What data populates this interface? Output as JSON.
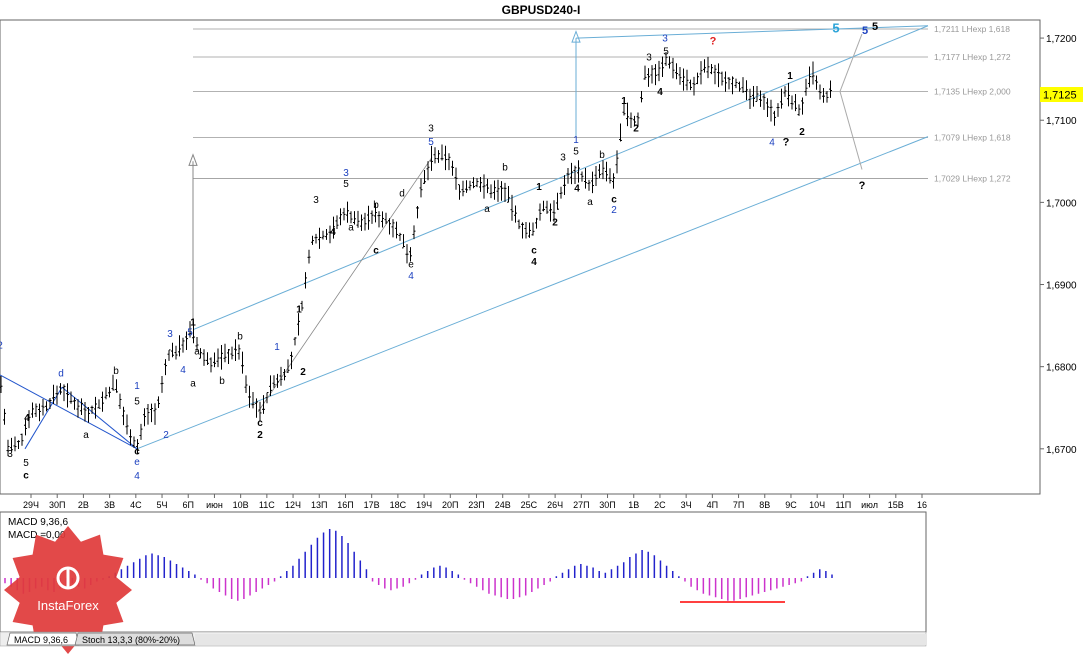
{
  "chart_data": {
    "type": "ohlc-bar",
    "title": "GBPUSD240-I",
    "ylim": [
      1.6645,
      1.7222
    ],
    "y_ticks": [
      "1,7200",
      "1,7100",
      "1,7000",
      "1,6900",
      "1,6800",
      "1,6700"
    ],
    "y_tick_values": [
      1.72,
      1.71,
      1.7,
      1.69,
      1.68,
      1.67
    ],
    "x_ticks": [
      "29Ч",
      "30П",
      "2В",
      "3В",
      "4С",
      "5Ч",
      "6П",
      "июн",
      "10В",
      "11С",
      "12Ч",
      "13П",
      "16П",
      "17В",
      "18С",
      "19Ч",
      "20П",
      "23П",
      "24В",
      "25С",
      "26Ч",
      "27П",
      "30П",
      "1В",
      "2С",
      "3Ч",
      "4П",
      "7П",
      "8В",
      "9С",
      "10Ч",
      "11П",
      "июл",
      "15В",
      "16"
    ],
    "grid": false,
    "current_price": "1,7125",
    "current_price_value": 1.7125,
    "fib_levels": [
      {
        "label": "1,7211 LHexp 1,618",
        "value": 1.7211
      },
      {
        "label": "1,7177 LHexp 1,272",
        "value": 1.7177
      },
      {
        "label": "1,7135 LHexp 2,000",
        "value": 1.7135
      },
      {
        "label": "1,7079 LHexp 1,618",
        "value": 1.7079
      },
      {
        "label": "1,7029 LHexp 1,272",
        "value": 1.7029
      }
    ],
    "price_path": [
      [
        0,
        1.679
      ],
      [
        8,
        1.67
      ],
      [
        20,
        1.6705
      ],
      [
        30,
        1.6745
      ],
      [
        45,
        1.675
      ],
      [
        62,
        1.6775
      ],
      [
        70,
        1.676
      ],
      [
        88,
        1.6745
      ],
      [
        100,
        1.6755
      ],
      [
        115,
        1.678
      ],
      [
        125,
        1.6735
      ],
      [
        137,
        1.67
      ],
      [
        146,
        1.6745
      ],
      [
        157,
        1.6745
      ],
      [
        168,
        1.6815
      ],
      [
        178,
        1.682
      ],
      [
        192,
        1.6845
      ],
      [
        200,
        1.6815
      ],
      [
        212,
        1.6805
      ],
      [
        226,
        1.6815
      ],
      [
        240,
        1.682
      ],
      [
        248,
        1.6765
      ],
      [
        262,
        1.6745
      ],
      [
        270,
        1.6775
      ],
      [
        290,
        1.68
      ],
      [
        300,
        1.686
      ],
      [
        312,
        1.6955
      ],
      [
        332,
        1.6965
      ],
      [
        345,
        1.699
      ],
      [
        360,
        1.6975
      ],
      [
        376,
        1.6985
      ],
      [
        392,
        1.6975
      ],
      [
        410,
        1.6935
      ],
      [
        420,
        1.701
      ],
      [
        432,
        1.7055
      ],
      [
        448,
        1.7055
      ],
      [
        460,
        1.7015
      ],
      [
        478,
        1.7025
      ],
      [
        490,
        1.7015
      ],
      [
        505,
        1.7015
      ],
      [
        518,
        1.6975
      ],
      [
        532,
        1.696
      ],
      [
        542,
        1.6995
      ],
      [
        556,
        1.699
      ],
      [
        566,
        1.703
      ],
      [
        578,
        1.704
      ],
      [
        590,
        1.702
      ],
      [
        602,
        1.704
      ],
      [
        614,
        1.7025
      ],
      [
        624,
        1.711
      ],
      [
        637,
        1.7095
      ],
      [
        645,
        1.7155
      ],
      [
        660,
        1.716
      ],
      [
        667,
        1.7175
      ],
      [
        680,
        1.7155
      ],
      [
        694,
        1.714
      ],
      [
        704,
        1.7165
      ],
      [
        712,
        1.716
      ],
      [
        725,
        1.715
      ],
      [
        738,
        1.7145
      ],
      [
        752,
        1.7125
      ],
      [
        762,
        1.713
      ],
      [
        774,
        1.7105
      ],
      [
        786,
        1.7135
      ],
      [
        800,
        1.711
      ],
      [
        812,
        1.716
      ],
      [
        822,
        1.7125
      ],
      [
        832,
        1.7135
      ]
    ],
    "wave_labels": [
      {
        "t": "1",
        "x": 193,
        "y": 1.685,
        "c": "black"
      },
      {
        "t": "5",
        "x": 190,
        "y": 1.6838,
        "c": "blue"
      },
      {
        "t": "3",
        "x": 431,
        "y": 1.7086,
        "c": "black"
      },
      {
        "t": "5",
        "x": 431,
        "y": 1.707,
        "c": "blue"
      },
      {
        "t": "3",
        "x": 665,
        "y": 1.7196,
        "c": "blue"
      },
      {
        "t": "5",
        "x": 666,
        "y": 1.718,
        "c": "black"
      },
      {
        "t": "?",
        "x": 713,
        "y": 1.7192,
        "c": "red"
      },
      {
        "t": "5",
        "x": 836,
        "y": 1.7207,
        "c": "cyan"
      },
      {
        "t": "5",
        "x": 875,
        "y": 1.721,
        "c": "black"
      },
      {
        "t": "5",
        "x": 865,
        "y": 1.7205,
        "c": "blue"
      },
      {
        "t": "4",
        "x": 772,
        "y": 1.7069,
        "c": "blue"
      },
      {
        "t": "?",
        "x": 786,
        "y": 1.7069,
        "c": "black"
      },
      {
        "t": "?",
        "x": 862,
        "y": 1.7016,
        "c": "black"
      },
      {
        "t": "1",
        "x": 576,
        "y": 1.7072,
        "c": "blue"
      },
      {
        "t": "5",
        "x": 576,
        "y": 1.7058,
        "c": "black"
      },
      {
        "t": "2",
        "x": 614,
        "y": 1.6987,
        "c": "blue"
      },
      {
        "t": "c",
        "x": 614,
        "y": 1.7,
        "c": "black"
      },
      {
        "t": "c",
        "x": 534,
        "y": 1.6938,
        "c": "black"
      },
      {
        "t": "4",
        "x": 534,
        "y": 1.6924,
        "c": "black"
      },
      {
        "t": "e",
        "x": 411,
        "y": 1.6921,
        "c": "black"
      },
      {
        "t": "4",
        "x": 411,
        "y": 1.6907,
        "c": "blue"
      },
      {
        "t": "d",
        "x": 402,
        "y": 1.7007,
        "c": "black"
      },
      {
        "t": "3",
        "x": 346,
        "y": 1.7032,
        "c": "blue"
      },
      {
        "t": "5",
        "x": 346,
        "y": 1.7019,
        "c": "black"
      },
      {
        "t": "3",
        "x": 316,
        "y": 1.6999,
        "c": "black"
      },
      {
        "t": "4",
        "x": 333,
        "y": 1.696,
        "c": "black"
      },
      {
        "t": "a",
        "x": 351,
        "y": 1.6966,
        "c": "black"
      },
      {
        "t": "b",
        "x": 376,
        "y": 1.6993,
        "c": "black"
      },
      {
        "t": "c",
        "x": 376,
        "y": 1.6938,
        "c": "black"
      },
      {
        "t": "b",
        "x": 505,
        "y": 1.7039,
        "c": "black"
      },
      {
        "t": "a",
        "x": 487,
        "y": 1.6988,
        "c": "black"
      },
      {
        "t": "1",
        "x": 539,
        "y": 1.7015,
        "c": "black"
      },
      {
        "t": "2",
        "x": 555,
        "y": 1.6972,
        "c": "black"
      },
      {
        "t": "3",
        "x": 563,
        "y": 1.7051,
        "c": "black"
      },
      {
        "t": "4",
        "x": 577,
        "y": 1.7013,
        "c": "black"
      },
      {
        "t": "a",
        "x": 590,
        "y": 1.6997,
        "c": "black"
      },
      {
        "t": "b",
        "x": 602,
        "y": 1.7054,
        "c": "black"
      },
      {
        "t": "1",
        "x": 624,
        "y": 1.712,
        "c": "black"
      },
      {
        "t": "2",
        "x": 636,
        "y": 1.7086,
        "c": "black"
      },
      {
        "t": "3",
        "x": 649,
        "y": 1.7173,
        "c": "black"
      },
      {
        "t": "4",
        "x": 660,
        "y": 1.7131,
        "c": "black"
      },
      {
        "t": "1",
        "x": 790,
        "y": 1.715,
        "c": "black"
      },
      {
        "t": "2",
        "x": 802,
        "y": 1.7082,
        "c": "black"
      },
      {
        "t": "1",
        "x": 299,
        "y": 1.6866,
        "c": "black"
      },
      {
        "t": "2",
        "x": 303,
        "y": 1.679,
        "c": "black"
      },
      {
        "t": "1",
        "x": 277,
        "y": 1.682,
        "c": "blue"
      },
      {
        "t": "c",
        "x": 260,
        "y": 1.6728,
        "c": "black"
      },
      {
        "t": "2",
        "x": 260,
        "y": 1.6713,
        "c": "black"
      },
      {
        "t": "b",
        "x": 240,
        "y": 1.6833,
        "c": "black"
      },
      {
        "t": "a",
        "x": 193,
        "y": 1.6776,
        "c": "black"
      },
      {
        "t": "b",
        "x": 222,
        "y": 1.6779,
        "c": "black"
      },
      {
        "t": "a",
        "x": 197,
        "y": 1.6815,
        "c": "black"
      },
      {
        "t": "3",
        "x": 170,
        "y": 1.6836,
        "c": "blue"
      },
      {
        "t": "4",
        "x": 183,
        "y": 1.6792,
        "c": "blue"
      },
      {
        "t": "2",
        "x": 166,
        "y": 1.6713,
        "c": "blue"
      },
      {
        "t": "1",
        "x": 137,
        "y": 1.6773,
        "c": "blue"
      },
      {
        "t": "5",
        "x": 137,
        "y": 1.6754,
        "c": "black"
      },
      {
        "t": "b",
        "x": 116,
        "y": 1.6791,
        "c": "black"
      },
      {
        "t": "a",
        "x": 86,
        "y": 1.6713,
        "c": "black"
      },
      {
        "t": "d",
        "x": 61,
        "y": 1.6788,
        "c": "blue"
      },
      {
        "t": "c",
        "x": 137,
        "y": 1.6693,
        "c": "black"
      },
      {
        "t": "e",
        "x": 137,
        "y": 1.668,
        "c": "blue"
      },
      {
        "t": "4",
        "x": 137,
        "y": 1.6663,
        "c": "blue"
      },
      {
        "t": "4",
        "x": 27,
        "y": 1.6734,
        "c": "black"
      },
      {
        "t": "3",
        "x": 10,
        "y": 1.669,
        "c": "black"
      },
      {
        "t": "5",
        "x": 26,
        "y": 1.6679,
        "c": "black"
      },
      {
        "t": "c",
        "x": 26,
        "y": 1.6664,
        "c": "black"
      },
      {
        "t": "2",
        "x": 0,
        "y": 1.6822,
        "c": "blue"
      }
    ]
  },
  "macd": {
    "label_params": "MACD 9,36,6",
    "label_value": "MACD =0,00",
    "bars": [
      -3,
      -5,
      -7,
      -9,
      -8,
      -6,
      -5,
      -7,
      -8,
      -6,
      -4,
      -3,
      -5,
      -6,
      -4,
      -2,
      -1,
      1,
      3,
      5,
      7,
      9,
      11,
      13,
      14,
      13,
      12,
      10,
      8,
      6,
      4,
      2,
      -1,
      -3,
      -6,
      -8,
      -10,
      -12,
      -13,
      -12,
      -10,
      -8,
      -6,
      -4,
      -2,
      1,
      4,
      7,
      11,
      15,
      19,
      23,
      26,
      28,
      27,
      24,
      20,
      15,
      10,
      5,
      -2,
      -4,
      -6,
      -7,
      -6,
      -5,
      -3,
      -1,
      2,
      4,
      6,
      7,
      6,
      4,
      2,
      -1,
      -3,
      -5,
      -7,
      -9,
      -10,
      -11,
      -12,
      -12,
      -11,
      -10,
      -8,
      -6,
      -4,
      -2,
      1,
      3,
      5,
      7,
      8,
      7,
      6,
      4,
      3,
      5,
      7,
      9,
      12,
      14,
      16,
      15,
      13,
      10,
      7,
      4,
      1,
      -2,
      -5,
      -7,
      -9,
      -10,
      -11,
      -12,
      -13,
      -13,
      -12,
      -11,
      -10,
      -9,
      -8,
      -7,
      -6,
      -5,
      -4,
      -3,
      -2,
      1,
      3,
      5,
      4,
      2
    ]
  },
  "indicator_tabs": [
    "MACD 9,36,6",
    "Stoch 13,3,3 (80%-20%)"
  ],
  "logo": {
    "text": "InstaForex"
  }
}
